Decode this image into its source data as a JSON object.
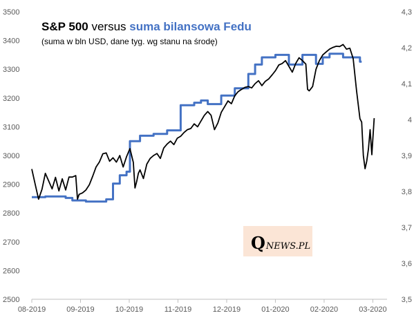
{
  "chart_data": {
    "type": "line",
    "title_parts": [
      {
        "text": "S&P 500",
        "weight": "bold",
        "color": "#000000"
      },
      {
        "text": " versus ",
        "weight": "normal",
        "color": "#000000"
      },
      {
        "text": "suma bilansowa Fedu",
        "weight": "bold",
        "color": "#4472c4"
      }
    ],
    "subtitle": "(suma w bln USD, dane tyg. wg stanu na środę)",
    "watermark": {
      "q": "Q",
      "rest": "NEWS.PL"
    },
    "x_labels": [
      "08-2019",
      "09-2019",
      "10-2019",
      "11-2019",
      "12-2019",
      "01-2020",
      "02-2020",
      "03-2020"
    ],
    "y_left": {
      "min": 2500,
      "max": 3500,
      "ticks": [
        "2500",
        "2600",
        "2700",
        "2800",
        "2900",
        "3000",
        "3100",
        "3200",
        "3300",
        "3400",
        "3500"
      ]
    },
    "y_right": {
      "min": 3.5,
      "max": 4.3,
      "ticks": [
        "3,5",
        "3,6",
        "3,7",
        "3,8",
        "3,9",
        "4",
        "4,1",
        "4,2",
        "4,3"
      ]
    },
    "grid": false,
    "series": [
      {
        "name": "S&P 500",
        "axis": "left",
        "color": "#000000",
        "points": [
          [
            0.0,
            2953
          ],
          [
            0.1,
            2900
          ],
          [
            0.2,
            2848
          ],
          [
            0.3,
            2882
          ],
          [
            0.4,
            2938
          ],
          [
            0.5,
            2911
          ],
          [
            0.6,
            2884
          ],
          [
            0.7,
            2924
          ],
          [
            0.8,
            2877
          ],
          [
            0.9,
            2919
          ],
          [
            1.0,
            2880
          ],
          [
            1.1,
            2925
          ],
          [
            1.2,
            2925
          ],
          [
            1.3,
            2930
          ],
          [
            1.35,
            2848
          ],
          [
            1.4,
            2865
          ],
          [
            1.5,
            2870
          ],
          [
            1.6,
            2880
          ],
          [
            1.7,
            2898
          ],
          [
            1.8,
            2928
          ],
          [
            1.9,
            2960
          ],
          [
            2.0,
            2978
          ],
          [
            2.1,
            3006
          ],
          [
            2.2,
            3009
          ],
          [
            2.3,
            2980
          ],
          [
            2.4,
            2992
          ],
          [
            2.5,
            2977
          ],
          [
            2.6,
            3000
          ],
          [
            2.7,
            2960
          ],
          [
            2.8,
            2996
          ],
          [
            2.9,
            3024
          ],
          [
            3.0,
            2976
          ],
          [
            3.05,
            2887
          ],
          [
            3.1,
            2910
          ],
          [
            3.15,
            2938
          ],
          [
            3.2,
            2950
          ],
          [
            3.3,
            2920
          ],
          [
            3.4,
            2970
          ],
          [
            3.5,
            2990
          ],
          [
            3.6,
            3000
          ],
          [
            3.7,
            3007
          ],
          [
            3.8,
            2990
          ],
          [
            3.9,
            3026
          ],
          [
            4.0,
            3040
          ],
          [
            4.1,
            3050
          ],
          [
            4.2,
            3038
          ],
          [
            4.3,
            3060
          ],
          [
            4.4,
            3067
          ],
          [
            4.5,
            3080
          ],
          [
            4.6,
            3090
          ],
          [
            4.7,
            3094
          ],
          [
            4.8,
            3110
          ],
          [
            4.9,
            3100
          ],
          [
            5.0,
            3120
          ],
          [
            5.1,
            3140
          ],
          [
            5.2,
            3153
          ],
          [
            5.3,
            3140
          ],
          [
            5.4,
            3090
          ],
          [
            5.5,
            3113
          ],
          [
            5.6,
            3150
          ],
          [
            5.7,
            3170
          ],
          [
            5.8,
            3190
          ],
          [
            5.9,
            3180
          ],
          [
            6.0,
            3208
          ],
          [
            6.1,
            3222
          ],
          [
            6.2,
            3230
          ],
          [
            6.3,
            3237
          ],
          [
            6.4,
            3240
          ],
          [
            6.5,
            3235
          ],
          [
            6.6,
            3250
          ],
          [
            6.7,
            3260
          ],
          [
            6.8,
            3243
          ],
          [
            6.9,
            3258
          ],
          [
            7.0,
            3266
          ],
          [
            7.1,
            3280
          ],
          [
            7.2,
            3295
          ],
          [
            7.3,
            3315
          ],
          [
            7.4,
            3320
          ],
          [
            7.5,
            3330
          ],
          [
            7.6,
            3310
          ],
          [
            7.7,
            3290
          ],
          [
            7.8,
            3320
          ],
          [
            7.9,
            3340
          ],
          [
            8.0,
            3330
          ],
          [
            8.1,
            3318
          ],
          [
            8.15,
            3230
          ],
          [
            8.2,
            3225
          ],
          [
            8.3,
            3240
          ],
          [
            8.4,
            3300
          ],
          [
            8.5,
            3330
          ],
          [
            8.6,
            3350
          ],
          [
            8.7,
            3360
          ],
          [
            8.8,
            3370
          ],
          [
            8.9,
            3376
          ],
          [
            9.0,
            3380
          ],
          [
            9.1,
            3379
          ],
          [
            9.2,
            3386
          ],
          [
            9.3,
            3370
          ],
          [
            9.4,
            3373
          ],
          [
            9.5,
            3337
          ],
          [
            9.6,
            3225
          ],
          [
            9.7,
            3128
          ],
          [
            9.75,
            3116
          ],
          [
            9.8,
            3000
          ],
          [
            9.85,
            2954
          ],
          [
            9.9,
            2980
          ],
          [
            9.95,
            3023
          ],
          [
            10.0,
            3090
          ],
          [
            10.05,
            3003
          ],
          [
            10.12,
            3130
          ]
        ]
      },
      {
        "name": "suma bilansowa Fedu",
        "axis": "right",
        "color": "#4472c4",
        "points": [
          [
            0.0,
            3.784
          ],
          [
            0.4,
            3.784
          ],
          [
            0.4,
            3.786
          ],
          [
            1.0,
            3.786
          ],
          [
            1.0,
            3.782
          ],
          [
            1.2,
            3.782
          ],
          [
            1.2,
            3.775
          ],
          [
            1.6,
            3.775
          ],
          [
            1.6,
            3.772
          ],
          [
            2.2,
            3.772
          ],
          [
            2.2,
            3.778
          ],
          [
            2.4,
            3.778
          ],
          [
            2.4,
            3.822
          ],
          [
            2.6,
            3.822
          ],
          [
            2.6,
            3.845
          ],
          [
            2.8,
            3.845
          ],
          [
            2.8,
            3.855
          ],
          [
            2.9,
            3.855
          ],
          [
            2.9,
            3.94
          ],
          [
            3.2,
            3.94
          ],
          [
            3.2,
            3.955
          ],
          [
            3.6,
            3.955
          ],
          [
            3.6,
            3.96
          ],
          [
            4.0,
            3.96
          ],
          [
            4.0,
            3.97
          ],
          [
            4.4,
            3.97
          ],
          [
            4.4,
            4.04
          ],
          [
            4.8,
            4.04
          ],
          [
            4.8,
            4.047
          ],
          [
            5.0,
            4.047
          ],
          [
            5.0,
            4.053
          ],
          [
            5.2,
            4.053
          ],
          [
            5.2,
            4.043
          ],
          [
            5.6,
            4.043
          ],
          [
            5.6,
            4.067
          ],
          [
            6.0,
            4.067
          ],
          [
            6.0,
            4.087
          ],
          [
            6.4,
            4.087
          ],
          [
            6.4,
            4.127
          ],
          [
            6.6,
            4.127
          ],
          [
            6.6,
            4.153
          ],
          [
            6.8,
            4.153
          ],
          [
            6.8,
            4.173
          ],
          [
            7.2,
            4.173
          ],
          [
            7.2,
            4.18
          ],
          [
            7.6,
            4.18
          ],
          [
            7.6,
            4.153
          ],
          [
            8.0,
            4.153
          ],
          [
            8.0,
            4.18
          ],
          [
            8.4,
            4.18
          ],
          [
            8.4,
            4.155
          ],
          [
            8.6,
            4.155
          ],
          [
            8.6,
            4.173
          ],
          [
            8.8,
            4.173
          ],
          [
            8.8,
            4.183
          ],
          [
            9.2,
            4.183
          ],
          [
            9.2,
            4.173
          ],
          [
            9.7,
            4.173
          ],
          [
            9.7,
            4.161
          ],
          [
            9.75,
            4.161
          ]
        ]
      }
    ],
    "x_domain": [
      0,
      10.5
    ]
  }
}
